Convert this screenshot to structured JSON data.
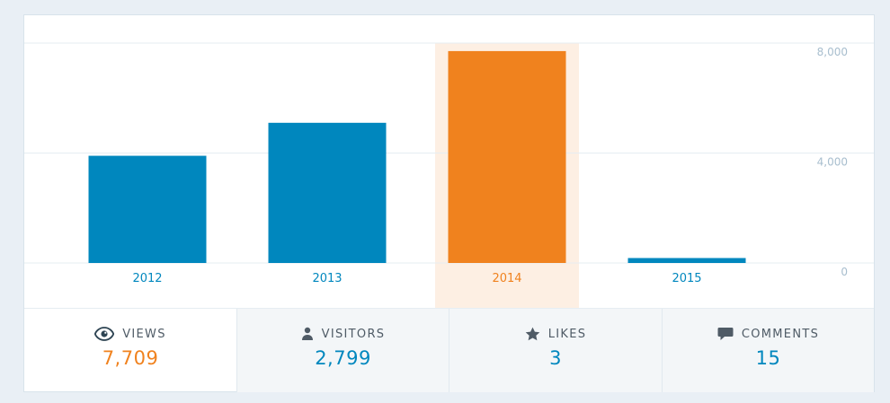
{
  "chart_data": {
    "type": "bar",
    "categories": [
      "2012",
      "2013",
      "2014",
      "2015"
    ],
    "values": [
      3900,
      5100,
      7709,
      180
    ],
    "highlight_index": 2,
    "ylim": [
      0,
      8000
    ],
    "y_ticks": [
      "0",
      "4,000",
      "8,000"
    ],
    "y_tick_values": [
      0,
      4000,
      8000
    ],
    "grid": true,
    "colors": {
      "bar": "#0087be",
      "bar_highlight": "#f0821e",
      "highlight_bg": "#fdefe3",
      "label": "#0087be",
      "label_highlight": "#f0821e",
      "tick": "#a8bece",
      "grid": "#e6edf2"
    }
  },
  "stats": [
    {
      "icon": "eye-icon",
      "label": "Views",
      "value": "7,709",
      "selected": true,
      "color": "#f0821e"
    },
    {
      "icon": "person-icon",
      "label": "Visitors",
      "value": "2,799",
      "selected": false,
      "color": "#0087be"
    },
    {
      "icon": "star-icon",
      "label": "Likes",
      "value": "3",
      "selected": false,
      "color": "#0087be"
    },
    {
      "icon": "comment-icon",
      "label": "Comments",
      "value": "15",
      "selected": false,
      "color": "#0087be"
    }
  ]
}
